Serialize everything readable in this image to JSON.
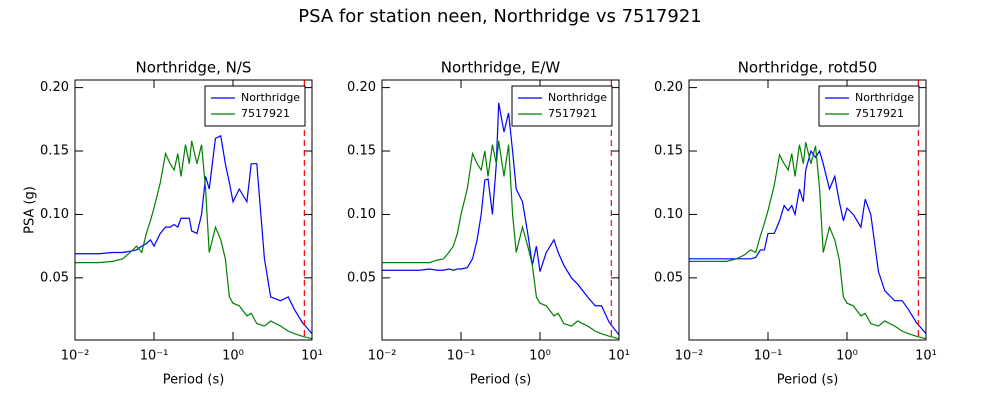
{
  "title": "PSA for station neen, Northridge vs 7517921",
  "chart_data": [
    {
      "type": "line",
      "title": "Northridge, N/S",
      "xlabel": "Period (s)",
      "ylabel": "PSA (g)",
      "xscale": "log",
      "xlim": [
        0.01,
        10
      ],
      "ylim": [
        0.001,
        0.206
      ],
      "xticks": [
        {
          "value": 0.01,
          "label": "10⁻²"
        },
        {
          "value": 0.1,
          "label": "10⁻¹"
        },
        {
          "value": 1,
          "label": "10⁰"
        },
        {
          "value": 10,
          "label": "10¹"
        }
      ],
      "yticks": [
        0.05,
        {
          "value": 0.1,
          "label": "0.10"
        },
        0.15,
        {
          "value": 0.2,
          "label": "0.20"
        }
      ],
      "legend": "upper right",
      "vline": 8,
      "vline_color": "#ff0000",
      "x": [
        0.01,
        0.02,
        0.03,
        0.04,
        0.05,
        0.06,
        0.07,
        0.08,
        0.09,
        0.1,
        0.12,
        0.14,
        0.16,
        0.18,
        0.2,
        0.22,
        0.25,
        0.28,
        0.3,
        0.35,
        0.4,
        0.45,
        0.5,
        0.6,
        0.7,
        0.8,
        0.9,
        1.0,
        1.2,
        1.5,
        1.7,
        2.0,
        2.5,
        3.0,
        4.0,
        5.0,
        6.0,
        7.5,
        10
      ],
      "series": [
        {
          "name": "Northridge",
          "color": "#0000ff",
          "values": [
            0.069,
            0.069,
            0.07,
            0.07,
            0.071,
            0.072,
            0.075,
            0.077,
            0.08,
            0.075,
            0.085,
            0.09,
            0.09,
            0.092,
            0.09,
            0.097,
            0.097,
            0.097,
            0.087,
            0.085,
            0.1,
            0.13,
            0.12,
            0.16,
            0.162,
            0.14,
            0.125,
            0.11,
            0.12,
            0.11,
            0.14,
            0.14,
            0.065,
            0.035,
            0.032,
            0.035,
            0.025,
            0.015,
            0.006
          ]
        },
        {
          "name": "7517921",
          "color": "#008000",
          "values": [
            0.062,
            0.062,
            0.063,
            0.065,
            0.07,
            0.075,
            0.07,
            0.085,
            0.095,
            0.105,
            0.125,
            0.148,
            0.14,
            0.135,
            0.148,
            0.13,
            0.155,
            0.14,
            0.158,
            0.14,
            0.155,
            0.12,
            0.07,
            0.09,
            0.08,
            0.065,
            0.035,
            0.03,
            0.028,
            0.02,
            0.022,
            0.014,
            0.012,
            0.016,
            0.012,
            0.008,
            0.006,
            0.004,
            0.002
          ]
        }
      ]
    },
    {
      "type": "line",
      "title": "Northridge, E/W",
      "xlabel": "Period (s)",
      "xscale": "log",
      "xlim": [
        0.01,
        10
      ],
      "ylim": [
        0.001,
        0.206
      ],
      "xticks": [
        {
          "value": 0.01,
          "label": "10⁻²"
        },
        {
          "value": 0.1,
          "label": "10⁻¹"
        },
        {
          "value": 1,
          "label": "10⁰"
        },
        {
          "value": 10,
          "label": "10¹"
        }
      ],
      "yticks": [
        0.05,
        {
          "value": 0.1,
          "label": "0.10"
        },
        0.15,
        {
          "value": 0.2,
          "label": "0.20"
        }
      ],
      "legend": "upper right",
      "vline": 8,
      "vline_color": "#ff0000",
      "x": [
        0.01,
        0.02,
        0.03,
        0.04,
        0.05,
        0.06,
        0.07,
        0.08,
        0.09,
        0.1,
        0.12,
        0.14,
        0.16,
        0.18,
        0.2,
        0.22,
        0.25,
        0.28,
        0.3,
        0.35,
        0.4,
        0.45,
        0.5,
        0.6,
        0.7,
        0.8,
        0.9,
        1.0,
        1.2,
        1.5,
        1.7,
        2.0,
        2.5,
        3.0,
        4.0,
        5.0,
        6.0,
        7.5,
        10
      ],
      "series": [
        {
          "name": "Northridge",
          "color": "#0000ff",
          "values": [
            0.056,
            0.056,
            0.056,
            0.057,
            0.056,
            0.056,
            0.057,
            0.056,
            0.057,
            0.057,
            0.058,
            0.065,
            0.08,
            0.1,
            0.127,
            0.128,
            0.1,
            0.14,
            0.188,
            0.165,
            0.18,
            0.15,
            0.12,
            0.11,
            0.085,
            0.06,
            0.075,
            0.055,
            0.07,
            0.08,
            0.07,
            0.06,
            0.05,
            0.045,
            0.035,
            0.028,
            0.028,
            0.015,
            0.005
          ]
        },
        {
          "name": "7517921",
          "color": "#008000",
          "values": [
            0.062,
            0.062,
            0.062,
            0.062,
            0.064,
            0.065,
            0.07,
            0.075,
            0.085,
            0.1,
            0.12,
            0.148,
            0.14,
            0.135,
            0.15,
            0.13,
            0.155,
            0.14,
            0.158,
            0.13,
            0.155,
            0.1,
            0.07,
            0.09,
            0.075,
            0.06,
            0.035,
            0.03,
            0.028,
            0.02,
            0.022,
            0.014,
            0.012,
            0.016,
            0.012,
            0.008,
            0.006,
            0.004,
            0.002
          ]
        }
      ]
    },
    {
      "type": "line",
      "title": "Northridge, rotd50",
      "xlabel": "Period (s)",
      "xscale": "log",
      "xlim": [
        0.01,
        10
      ],
      "ylim": [
        0.001,
        0.206
      ],
      "xticks": [
        {
          "value": 0.01,
          "label": "10⁻²"
        },
        {
          "value": 0.1,
          "label": "10⁻¹"
        },
        {
          "value": 1,
          "label": "10⁰"
        },
        {
          "value": 10,
          "label": "10¹"
        }
      ],
      "yticks": [
        0.05,
        {
          "value": 0.1,
          "label": "0.10"
        },
        0.15,
        {
          "value": 0.2,
          "label": "0.20"
        }
      ],
      "legend": "upper right",
      "vline": 8,
      "vline_color": "#ff0000",
      "x": [
        0.01,
        0.02,
        0.03,
        0.04,
        0.05,
        0.06,
        0.07,
        0.08,
        0.09,
        0.1,
        0.12,
        0.14,
        0.16,
        0.18,
        0.2,
        0.22,
        0.25,
        0.28,
        0.3,
        0.35,
        0.4,
        0.45,
        0.5,
        0.6,
        0.7,
        0.8,
        0.9,
        1.0,
        1.2,
        1.5,
        1.7,
        2.0,
        2.5,
        3.0,
        4.0,
        5.0,
        6.0,
        7.5,
        10
      ],
      "series": [
        {
          "name": "Northridge",
          "color": "#0000ff",
          "values": [
            0.065,
            0.065,
            0.065,
            0.065,
            0.065,
            0.065,
            0.066,
            0.072,
            0.072,
            0.085,
            0.085,
            0.095,
            0.107,
            0.103,
            0.107,
            0.1,
            0.12,
            0.11,
            0.135,
            0.15,
            0.145,
            0.15,
            0.14,
            0.12,
            0.13,
            0.11,
            0.095,
            0.105,
            0.1,
            0.09,
            0.112,
            0.1,
            0.055,
            0.04,
            0.032,
            0.032,
            0.025,
            0.015,
            0.006
          ]
        },
        {
          "name": "7517921",
          "color": "#008000",
          "values": [
            0.063,
            0.063,
            0.063,
            0.065,
            0.068,
            0.072,
            0.07,
            0.083,
            0.093,
            0.103,
            0.123,
            0.147,
            0.14,
            0.135,
            0.148,
            0.13,
            0.155,
            0.14,
            0.157,
            0.14,
            0.154,
            0.12,
            0.07,
            0.09,
            0.08,
            0.064,
            0.035,
            0.03,
            0.028,
            0.02,
            0.022,
            0.014,
            0.012,
            0.016,
            0.012,
            0.008,
            0.006,
            0.004,
            0.002
          ]
        }
      ]
    }
  ]
}
